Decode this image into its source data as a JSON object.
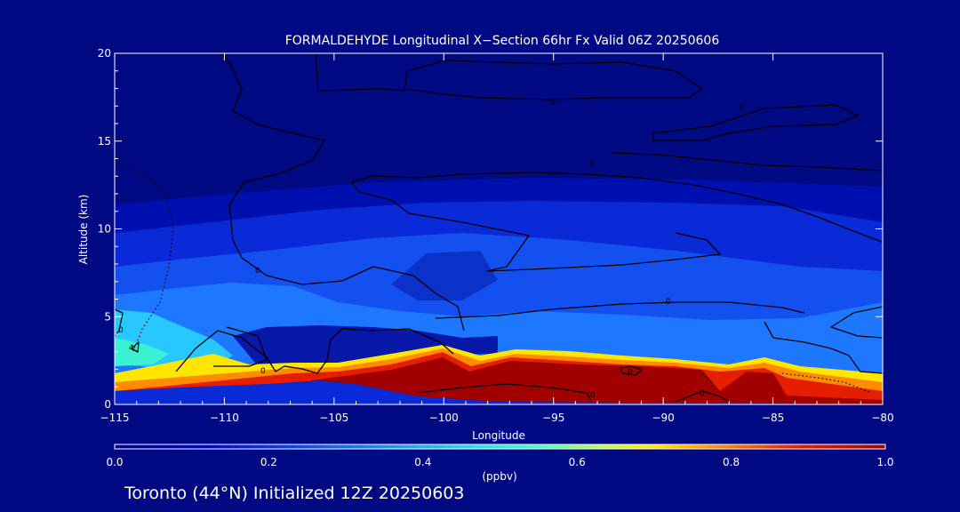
{
  "title": "FORMALDEHYDE Longitudinal X−Section 66hr  Fx Valid 06Z 20250606",
  "footer": "Toronto (44°N) Initialized 12Z 20250603",
  "colors": {
    "background": "#010a82",
    "scale": [
      "#00008c",
      "#0000e0",
      "#0a3cff",
      "#1e96ff",
      "#28d2ff",
      "#3cffc8",
      "#b4ff50",
      "#ffe600",
      "#ff8c00",
      "#f01e00",
      "#a00000"
    ]
  },
  "chart_data": {
    "type": "heatmap",
    "title": "FORMALDEHYDE Longitudinal X−Section 66hr  Fx Valid 06Z 20250606",
    "xlabel": "Longitude",
    "ylabel": "Altitude (km)",
    "xlim": [
      -115,
      -80
    ],
    "ylim": [
      0,
      20
    ],
    "x_ticks": [
      -115,
      -110,
      -105,
      -100,
      -95,
      -90,
      -85,
      -80
    ],
    "x_tick_labels": [
      "−115",
      "−110",
      "−105",
      "−100",
      "−95",
      "−90",
      "−85",
      "−80"
    ],
    "y_ticks": [
      0,
      5,
      10,
      15,
      20
    ],
    "y_tick_labels": [
      "0",
      "5",
      "10",
      "15",
      "20"
    ],
    "colorbar": {
      "label": "(ppbv)",
      "range": [
        0.0,
        1.0
      ],
      "ticks": [
        0.0,
        0.2,
        0.4,
        0.6,
        0.8,
        1.0
      ],
      "tick_labels": [
        "0.0",
        "0.2",
        "0.4",
        "0.6",
        "0.8",
        "1.0"
      ]
    },
    "contour_labels": [
      "0",
      "0",
      "0",
      "0",
      "0",
      "0",
      "0",
      "0",
      "0",
      "0",
      "0",
      "4"
    ],
    "grid": false
  }
}
